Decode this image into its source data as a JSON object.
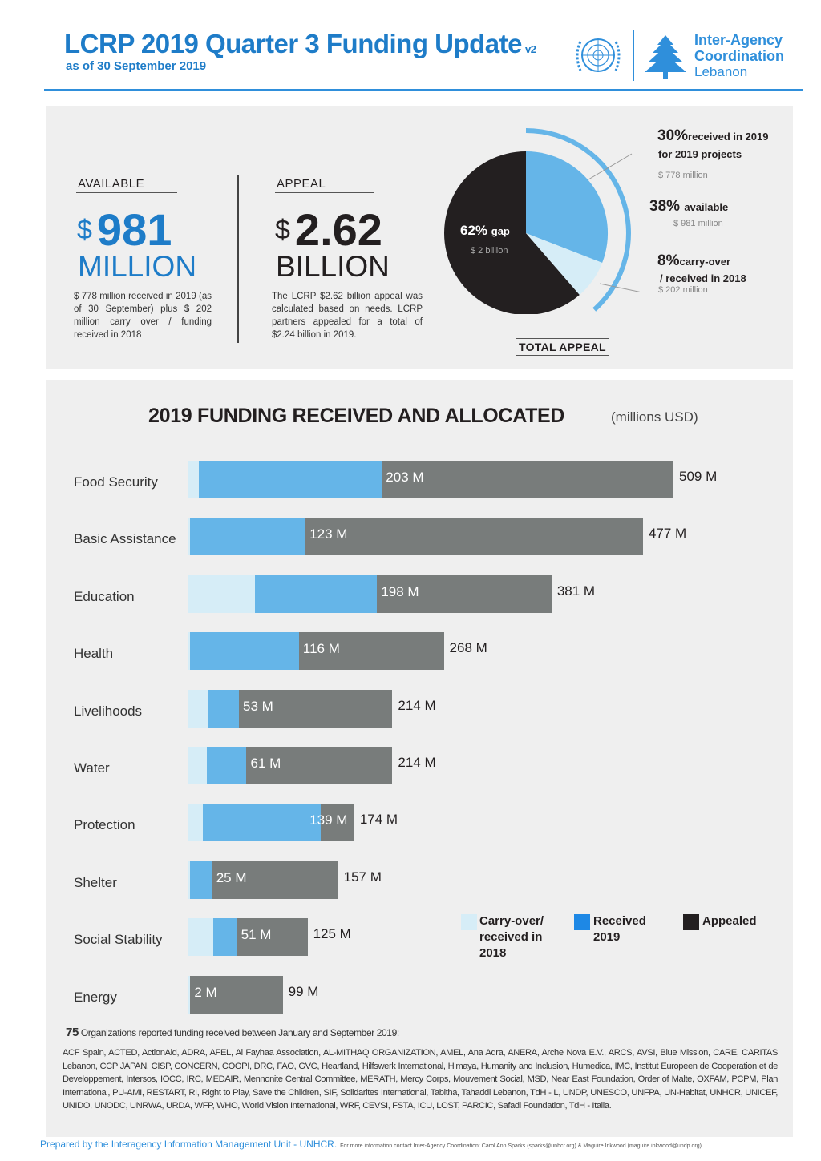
{
  "header": {
    "title": "LCRP 2019  Quarter 3 Funding Update",
    "version": "v2",
    "subtitle": "as of 30 September  2019",
    "iac_line1": "Inter-Agency",
    "iac_line2": "Coordination",
    "iac_line3": "Lebanon"
  },
  "available": {
    "label": "AVAILABLE",
    "currency": "$",
    "amount": "981",
    "unit": "MILLION",
    "description": "$ 778 million received in 2019 (as of 30 September) plus $ 202 million carry over / funding received in 2018"
  },
  "appeal": {
    "label": "APPEAL",
    "currency": "$",
    "amount": "2.62",
    "unit": "BILLION",
    "description": "The LCRP $2.62 billion appeal was calculated based on needs. LCRP partners appealed for a total of $2.24 billion in 2019."
  },
  "pie": {
    "caption": "TOTAL APPEAL",
    "gap_pct": "62%",
    "gap_word": "gap",
    "gap_amount": "$ 2 billion",
    "received_pct": "30%",
    "received_text_1": "received in 2019",
    "received_text_2": "for 2019 projects",
    "received_amount": "$ 778 million",
    "available_pct": "38%",
    "available_word": "available",
    "available_amount": "$ 981 million",
    "carry_pct": "8%",
    "carry_text_1": "carry-over",
    "carry_text_2": "/ received in 2018",
    "carry_amount": "$ 202 million",
    "colors": {
      "received": "#65b5e8",
      "carry": "#d6edf7",
      "gap": "#231f20",
      "arc": "#65b5e8"
    }
  },
  "chart_data": {
    "type": "bar",
    "title": "2019 FUNDING RECEIVED AND ALLOCATED",
    "unit_label": "(millions USD)",
    "categories": [
      "Food Security",
      "Basic Assistance",
      "Education",
      "Health",
      "Livelihoods",
      "Water",
      "Protection",
      "Shelter",
      "Social Stability",
      "Energy"
    ],
    "series": [
      {
        "name": "Carry-over/ received in 2018",
        "values": [
          11,
          2,
          70,
          2,
          20,
          19,
          15,
          2,
          26,
          2
        ]
      },
      {
        "name": "Received 2019",
        "values": [
          192,
          121,
          128,
          114,
          33,
          42,
          124,
          23,
          25,
          0
        ]
      },
      {
        "name": "Appealed",
        "values": [
          509,
          477,
          381,
          268,
          214,
          214,
          174,
          157,
          125,
          99
        ]
      }
    ],
    "received_labels": [
      "203 M",
      "123 M",
      "198 M",
      "116 M",
      "53 M",
      "61 M",
      "139 M",
      "25 M",
      "51 M",
      "2 M"
    ],
    "appealed_labels": [
      "509 M",
      "477 M",
      "381 M",
      "268 M",
      "214 M",
      "214 M",
      "174 M",
      "157 M",
      "125 M",
      "99 M"
    ],
    "colors": {
      "carry": "#d6edf7",
      "received": "#65b5e8",
      "appealed": "#787c7b"
    }
  },
  "legend": {
    "carry_line1": "Carry-over/",
    "carry_line2": "received in",
    "carry_line3": "2018",
    "received_line1": "Received",
    "received_line2": "2019",
    "appealed": "Appealed",
    "colors": {
      "carry": "#d6edf7",
      "received": "#1e88e5",
      "appealed": "#231f20"
    }
  },
  "orgs": {
    "count": "75",
    "text": "Organizations reported funding received between January and September 2019:",
    "list": "ACF Spain, ACTED, ActionAid, ADRA, AFEL, Al Fayhaa Association, AL-MITHAQ ORGANIZATION, AMEL, Ana Aqra, ANERA, Arche Nova E.V., ARCS, AVSI, Blue Mission, CARE, CARITAS Lebanon, CCP JAPAN, CISP, CONCERN, COOPI, DRC, FAO, GVC, Heartland, Hilfswerk International, Himaya, Humanity and Inclusion, Humedica, IMC, Institut Europeen de Cooperation et de Developpement, Intersos, IOCC, IRC, MEDAIR, Mennonite Central Committee, MERATH, Mercy Corps, Mouvement Social, MSD, Near East Foundation, Order of Malte, OXFAM, PCPM, Plan International, PU-AMI, RESTART, RI, Right to Play, Save the Children, SIF, Solidarites International, Tabitha, Tahaddi Lebanon, TdH - L, UNDP, UNESCO, UNFPA, UN-Habitat, UNHCR, UNICEF, UNIDO, UNODC, UNRWA, URDA, WFP, WHO, World Vision International, WRF, CEVSI, FSTA, ICU, LOST, PARCIC, Safadi Foundation, TdH - Italia."
  },
  "footer": {
    "prepared": "Prepared by the Interagency Information Management Unit - UNHCR.",
    "contact": "For more information contact Inter-Agency Coordination: Carol Ann Sparks (sparks@unhcr.org) & Maguire Inkwood (maguire.inkwood@undp.org)"
  }
}
